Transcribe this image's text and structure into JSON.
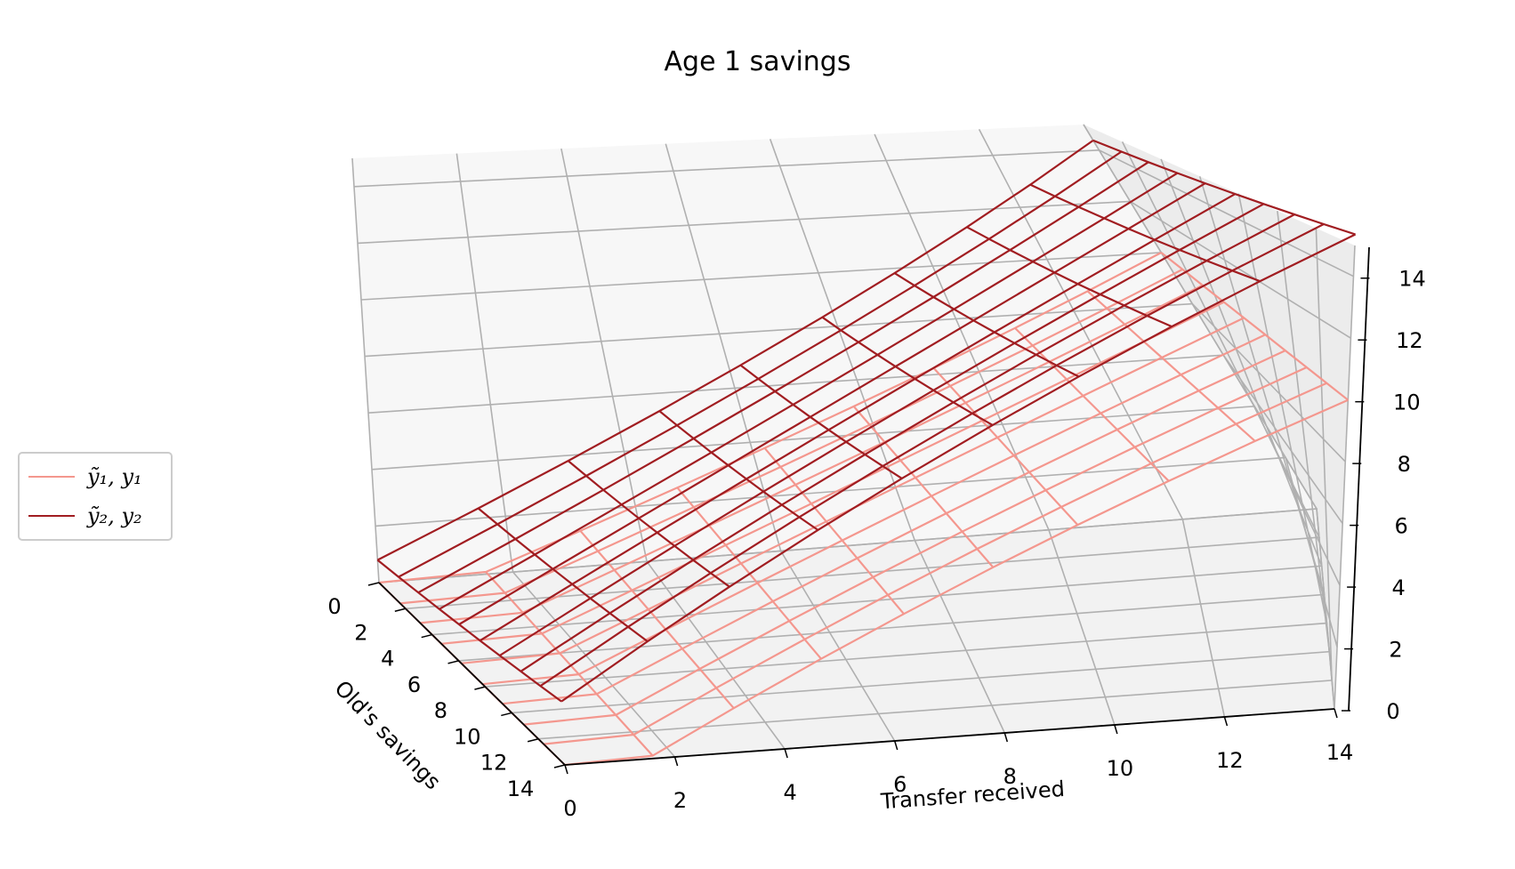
{
  "chart_data": {
    "type": "wireframe-3d",
    "title": "Age 1 savings",
    "x_axis": {
      "label": "Transfer received",
      "ticks": [
        "0",
        "2",
        "4",
        "6",
        "8",
        "10",
        "12",
        "14"
      ],
      "range": [
        0,
        14
      ]
    },
    "y_axis": {
      "label": "Old's savings",
      "ticks": [
        "0",
        "2",
        "4",
        "6",
        "8",
        "10",
        "12",
        "14"
      ],
      "range": [
        0,
        14
      ]
    },
    "z_axis": {
      "label": "",
      "ticks": [
        "0",
        "2",
        "4",
        "6",
        "8",
        "10",
        "12",
        "14"
      ],
      "range": [
        0,
        15
      ]
    },
    "grid": true,
    "legend_position": "center-left",
    "grid_x": [
      0,
      1.6,
      3.1,
      4.7,
      6.2,
      7.8,
      9.3,
      10.9,
      12.4,
      14
    ],
    "grid_y": [
      0,
      1.6,
      3.1,
      4.7,
      6.2,
      7.8,
      9.3,
      10.9,
      12.4,
      14
    ],
    "series": [
      {
        "name": "ỹ₁, y₁",
        "color": "#f4978e",
        "surface": "z = max(0, 0.8 * (x - 1.5))"
      },
      {
        "name": "ỹ₂, y₂",
        "color": "#a11d21",
        "surface": "z = 0.97 * x + 0.07 * y + 0.8"
      }
    ]
  }
}
